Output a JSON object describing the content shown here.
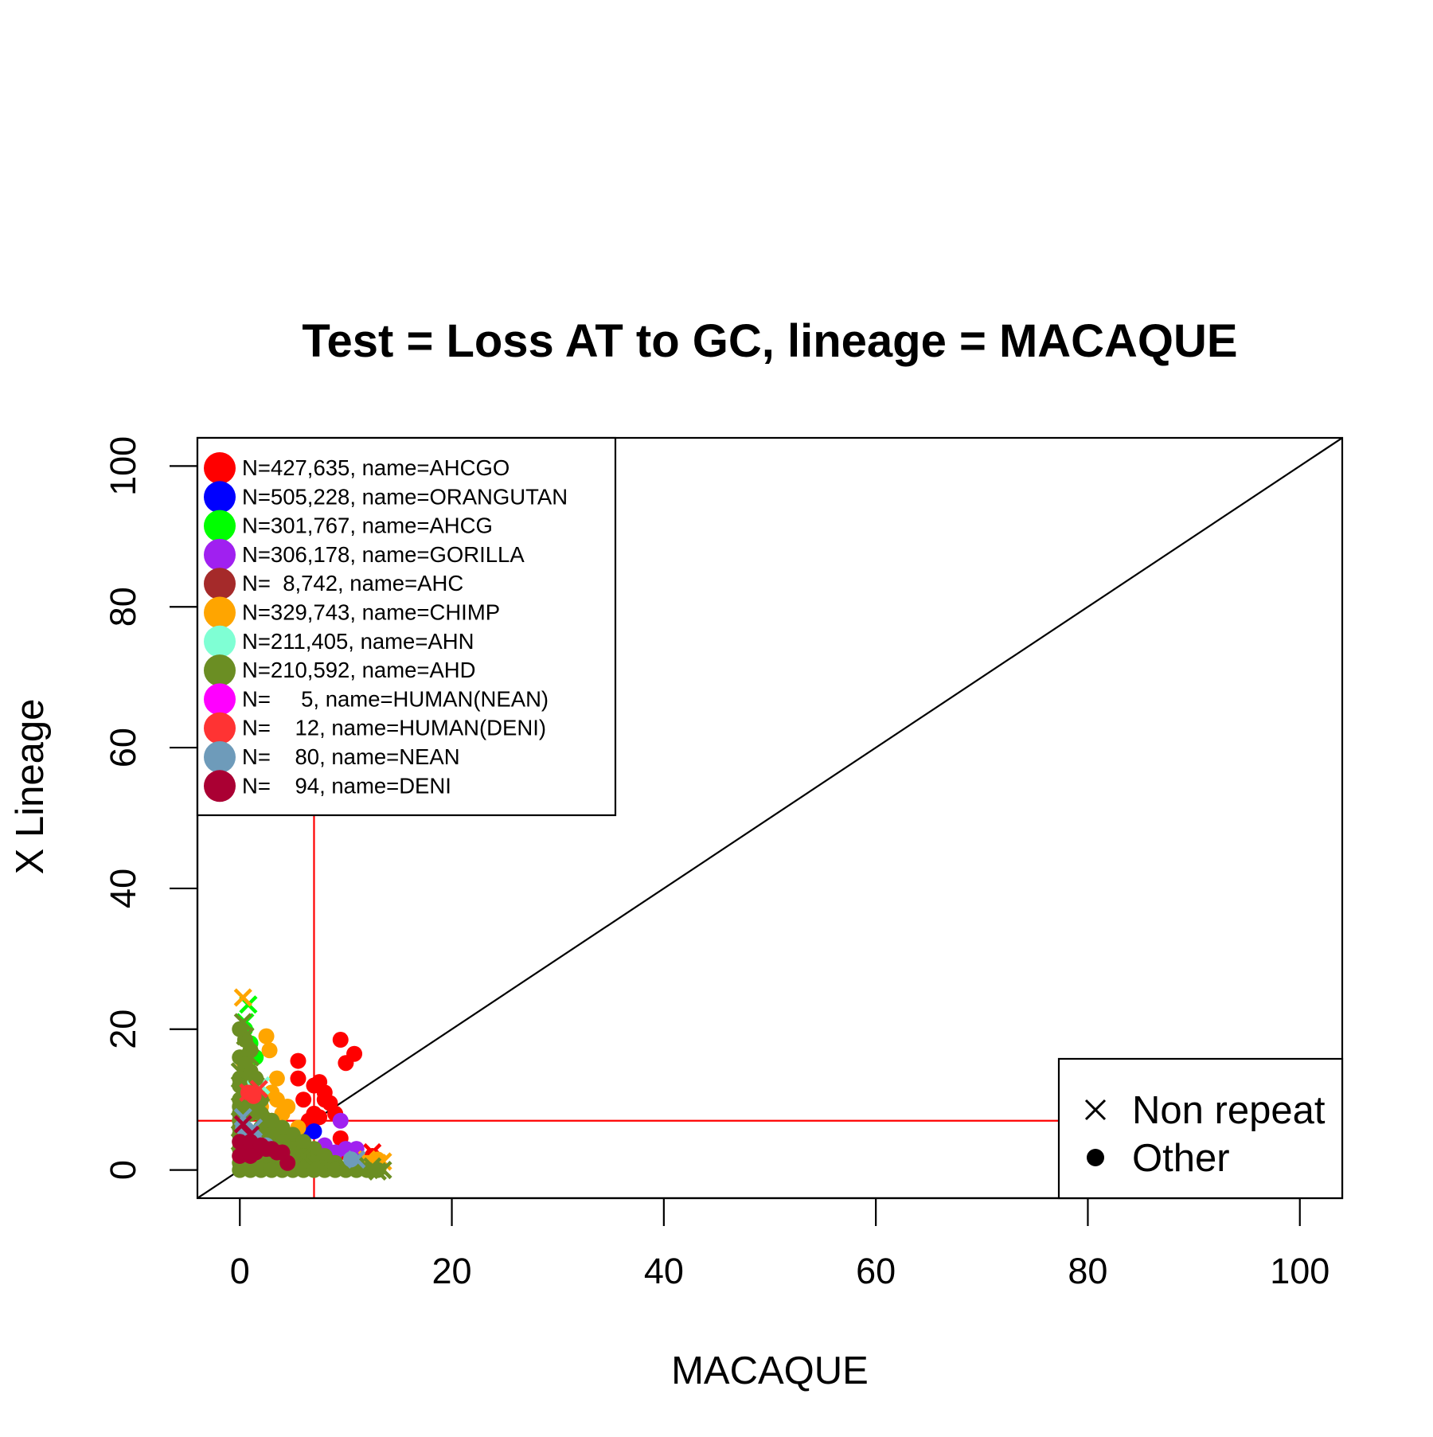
{
  "chart_data": {
    "type": "scatter",
    "title": "Test = Loss AT to GC, lineage = MACAQUE",
    "xlabel": "MACAQUE",
    "ylabel": "X Lineage",
    "xlim": [
      -4,
      104
    ],
    "ylim": [
      -4,
      104
    ],
    "x_ticks": [
      0,
      20,
      40,
      60,
      80,
      100
    ],
    "y_ticks": [
      0,
      20,
      40,
      60,
      80,
      100
    ],
    "x_tick_labels": [
      "0",
      "20",
      "40",
      "60",
      "80",
      "100"
    ],
    "y_tick_labels": [
      "0",
      "20",
      "40",
      "60",
      "80",
      "100"
    ],
    "grid": false,
    "reference_lines": [
      {
        "kind": "diagonal",
        "slope": 1,
        "intercept": 0,
        "color": "#000000"
      },
      {
        "kind": "vertical",
        "x": 7,
        "color": "#ff0000"
      },
      {
        "kind": "horizontal",
        "y": 7,
        "color": "#ff0000"
      }
    ],
    "legend_placement": "top-left",
    "series": [
      {
        "label": "N=427,635, name=AHCGO",
        "color": "#ff0000",
        "points": [
          [
            5.5,
            15.5
          ],
          [
            5.5,
            13
          ],
          [
            6,
            10
          ],
          [
            7,
            12
          ],
          [
            7.5,
            12.5
          ],
          [
            8,
            11
          ],
          [
            8.5,
            9.5
          ],
          [
            9.5,
            18.5
          ],
          [
            10,
            15.2
          ],
          [
            10.8,
            16.5
          ],
          [
            7,
            8
          ],
          [
            6.5,
            7
          ],
          [
            8,
            10
          ],
          [
            9,
            8
          ],
          [
            7.5,
            7.5
          ],
          [
            6.8,
            6.8
          ],
          [
            9.5,
            4.5
          ],
          [
            10,
            2.5
          ],
          [
            11,
            2
          ],
          [
            12.5,
            2
          ]
        ],
        "crosses": [
          [
            12.5,
            2.5
          ]
        ]
      },
      {
        "label": "N=505,228, name=ORANGUTAN",
        "color": "#0000ff",
        "points": [
          [
            6,
            5
          ],
          [
            5,
            4
          ],
          [
            7,
            5.5
          ],
          [
            4,
            3
          ]
        ],
        "crosses": [
          [
            6,
            4
          ]
        ]
      },
      {
        "label": "N=301,767, name=AHCG",
        "color": "#00ff00",
        "points": [
          [
            0.5,
            20
          ],
          [
            1,
            18
          ],
          [
            1.5,
            16
          ]
        ],
        "crosses": [
          [
            0.8,
            23.5
          ],
          [
            0.5,
            21
          ]
        ]
      },
      {
        "label": "N=306,178, name=GORILLA",
        "color": "#a020f0",
        "points": [
          [
            9.5,
            7
          ],
          [
            8,
            3.5
          ],
          [
            10,
            3
          ],
          [
            11,
            3
          ],
          [
            9,
            2.5
          ],
          [
            10.5,
            2.5
          ]
        ],
        "crosses": []
      },
      {
        "label": "N=  8,742, name=AHC",
        "color": "#a52a2a",
        "points": [
          [
            1,
            5
          ],
          [
            2,
            4
          ],
          [
            3,
            4.5
          ]
        ],
        "crosses": []
      },
      {
        "label": "N=329,743, name=CHIMP",
        "color": "#ffa500",
        "points": [
          [
            2.5,
            19
          ],
          [
            2.8,
            17
          ],
          [
            3.5,
            13
          ],
          [
            3,
            11
          ],
          [
            3.5,
            10
          ],
          [
            2,
            9
          ],
          [
            4,
            8
          ],
          [
            4.5,
            9
          ],
          [
            5.5,
            6
          ],
          [
            3,
            7
          ],
          [
            1.5,
            12
          ],
          [
            12,
            1
          ],
          [
            13,
            1.5
          ],
          [
            11,
            1
          ]
        ],
        "crosses": [
          [
            0.3,
            24.5
          ],
          [
            0.5,
            14
          ],
          [
            1,
            10
          ],
          [
            12,
            1.5
          ],
          [
            13,
            1
          ],
          [
            13.5,
            1.2
          ]
        ]
      },
      {
        "label": "N=211,405, name=AHN",
        "color": "#7fffd4",
        "points": [
          [
            1,
            12
          ],
          [
            1.5,
            10
          ],
          [
            2,
            6
          ],
          [
            3,
            5
          ],
          [
            10.5,
            1.5
          ],
          [
            11,
            1
          ]
        ],
        "crosses": [
          [
            2,
            12
          ]
        ]
      },
      {
        "label": "N=210,592, name=AHD",
        "color": "#6b8e23",
        "points": [
          [
            0,
            20
          ],
          [
            0.5,
            18.5
          ],
          [
            1,
            17
          ],
          [
            0,
            16
          ],
          [
            0.5,
            15
          ],
          [
            1,
            14
          ],
          [
            0,
            13
          ],
          [
            1.5,
            13
          ],
          [
            0,
            12
          ],
          [
            1,
            11
          ],
          [
            0,
            10
          ],
          [
            2,
            10
          ],
          [
            0,
            9
          ],
          [
            1,
            9
          ],
          [
            0,
            8
          ],
          [
            1,
            8
          ],
          [
            2,
            8
          ],
          [
            0,
            7
          ],
          [
            3,
            7
          ],
          [
            0,
            6
          ],
          [
            2,
            6
          ],
          [
            4,
            6
          ],
          [
            0,
            5
          ],
          [
            1,
            5
          ],
          [
            3,
            5
          ],
          [
            5,
            5
          ],
          [
            0,
            4
          ],
          [
            2,
            4
          ],
          [
            4,
            4
          ],
          [
            6,
            4
          ],
          [
            0,
            3
          ],
          [
            1,
            3
          ],
          [
            3,
            3
          ],
          [
            5,
            3
          ],
          [
            7,
            3
          ],
          [
            0,
            2
          ],
          [
            2,
            2
          ],
          [
            4,
            2
          ],
          [
            6,
            2
          ],
          [
            8,
            2
          ],
          [
            0,
            1
          ],
          [
            1,
            1
          ],
          [
            3,
            1
          ],
          [
            5,
            1
          ],
          [
            7,
            1
          ],
          [
            9,
            1
          ],
          [
            11,
            1
          ],
          [
            0,
            0
          ],
          [
            1,
            0
          ],
          [
            2,
            0
          ],
          [
            3,
            0
          ],
          [
            4,
            0
          ],
          [
            5,
            0
          ],
          [
            6,
            0
          ],
          [
            7,
            0
          ],
          [
            8,
            0
          ],
          [
            9,
            0
          ],
          [
            10,
            0
          ],
          [
            11,
            0
          ],
          [
            12,
            0
          ],
          [
            13,
            0
          ]
        ],
        "crosses": [
          [
            0.3,
            21
          ],
          [
            0.5,
            19
          ],
          [
            1,
            16
          ],
          [
            0,
            14
          ],
          [
            1.5,
            12
          ],
          [
            0,
            11
          ],
          [
            2,
            9
          ],
          [
            0,
            7
          ],
          [
            3,
            6
          ],
          [
            0,
            4
          ],
          [
            4,
            3
          ],
          [
            6,
            2
          ],
          [
            8,
            1
          ],
          [
            10,
            0.5
          ],
          [
            12.5,
            0.5
          ],
          [
            13.5,
            0
          ],
          [
            13,
            -0.2
          ]
        ]
      },
      {
        "label": "N=     5, name=HUMAN(NEAN)",
        "color": "#ff00ff",
        "points": [],
        "crosses": []
      },
      {
        "label": "N=    12, name=HUMAN(DENI)",
        "color": "#ff3333",
        "points": [
          [
            0.8,
            11
          ],
          [
            1.3,
            10.5
          ]
        ],
        "crosses": [
          [
            0.8,
            11
          ],
          [
            1.8,
            11.5
          ]
        ]
      },
      {
        "label": "N=    80, name=NEAN",
        "color": "#6e9bba",
        "points": [
          [
            0.3,
            6
          ],
          [
            1,
            5
          ],
          [
            1.5,
            4
          ],
          [
            2.5,
            3.5
          ],
          [
            10.5,
            1.5
          ]
        ],
        "crosses": [
          [
            0.3,
            7.5
          ],
          [
            1.3,
            6
          ],
          [
            11,
            1.5
          ]
        ]
      },
      {
        "label": "N=    94, name=DENI",
        "color": "#aa0033",
        "points": [
          [
            0,
            4
          ],
          [
            0.5,
            3
          ],
          [
            1,
            4
          ],
          [
            1.5,
            2.5
          ],
          [
            2,
            3.5
          ],
          [
            2.5,
            3
          ],
          [
            3,
            3
          ],
          [
            3.5,
            2.5
          ],
          [
            4,
            2.5
          ],
          [
            4.5,
            1
          ],
          [
            0,
            2
          ],
          [
            1,
            2
          ]
        ],
        "crosses": [
          [
            0.3,
            6.5
          ],
          [
            1,
            5
          ]
        ]
      }
    ],
    "shape_legend": {
      "placement": "bottom-right",
      "entries": [
        {
          "symbol": "cross",
          "label": "Non repeat"
        },
        {
          "symbol": "dot",
          "label": "Other"
        }
      ]
    }
  }
}
